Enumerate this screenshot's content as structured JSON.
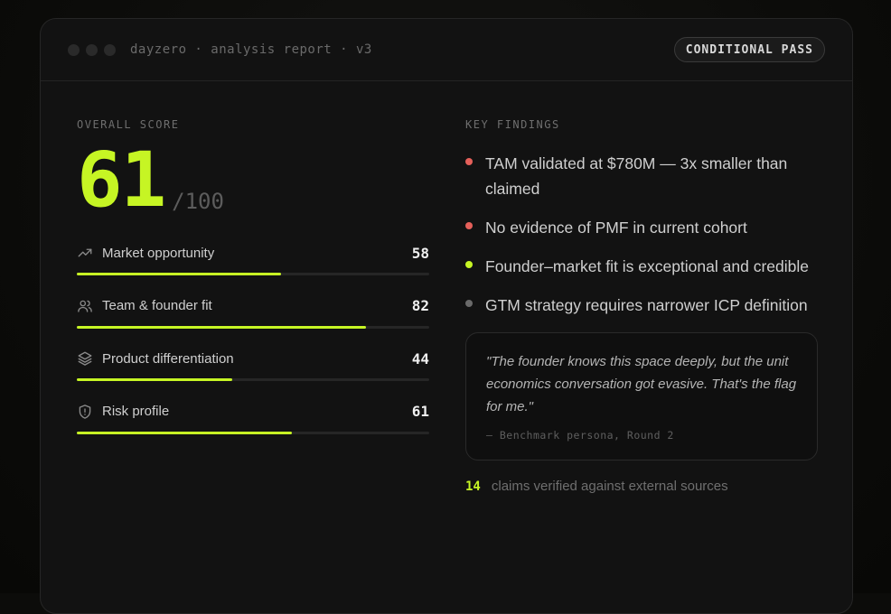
{
  "window": {
    "title": "dayzero · analysis report · v3",
    "status_badge": "CONDITIONAL PASS"
  },
  "score": {
    "label": "OVERALL SCORE",
    "value": "61",
    "max": "/100"
  },
  "metrics": [
    {
      "label": "Market opportunity",
      "value": "58",
      "icon": "trending-up-icon",
      "fraction": 0.58
    },
    {
      "label": "Team & founder fit",
      "value": "82",
      "icon": "users-icon",
      "fraction": 0.82
    },
    {
      "label": "Product differentiation",
      "value": "44",
      "icon": "layers-icon",
      "fraction": 0.44
    },
    {
      "label": "Risk profile",
      "value": "61",
      "icon": "shield-alert-icon",
      "fraction": 0.61
    }
  ],
  "findings": {
    "label": "KEY FINDINGS",
    "items": [
      {
        "text": "TAM validated at $780M — 3x smaller than claimed",
        "status": "negative",
        "color": "#e5605a"
      },
      {
        "text": "No evidence of PMF in current cohort",
        "status": "negative",
        "color": "#e5605a"
      },
      {
        "text": "Founder–market fit is exceptional and credible",
        "status": "positive",
        "color": "#c6f524"
      },
      {
        "text": "GTM strategy requires narrower ICP definition",
        "status": "neutral",
        "color": "#6a6a6a"
      }
    ]
  },
  "quote": {
    "text": "\"The founder knows this space deeply, but the unit economics conversation got evasive. That's the flag for me.\"",
    "attribution": "— Benchmark persona, Round 2"
  },
  "claims": {
    "count": "14",
    "text": "claims verified against external sources"
  },
  "colors": {
    "accent": "#c6f524",
    "negative": "#e5605a",
    "neutral": "#6a6a6a"
  }
}
